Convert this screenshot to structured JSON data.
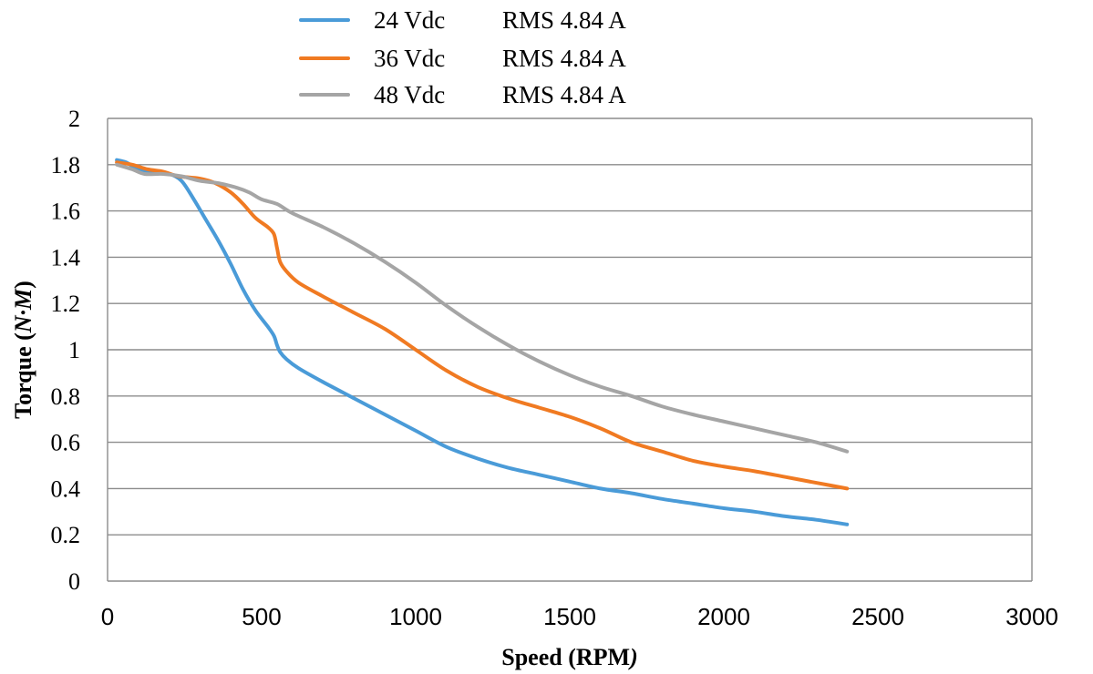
{
  "chart_data": {
    "type": "line",
    "title": "",
    "xlabel_prefix": "Speed (RPM",
    "xlabel_suffix": ")",
    "ylabel_prefix": "Torque (",
    "ylabel_italic": "N·M",
    "ylabel_suffix": ")",
    "xlim": [
      0,
      3000
    ],
    "ylim": [
      0,
      2
    ],
    "x_ticks": [
      "0",
      "500",
      "1000",
      "1500",
      "2000",
      "2500",
      "3000"
    ],
    "x_tick_values": [
      0,
      500,
      1000,
      1500,
      2000,
      2500,
      3000
    ],
    "y_ticks": [
      "0",
      "0.2",
      "0.4",
      "0.6",
      "0.8",
      "1",
      "1.2",
      "1.4",
      "1.6",
      "1.8",
      "2"
    ],
    "y_tick_values": [
      0,
      0.2,
      0.4,
      0.6,
      0.8,
      1.0,
      1.2,
      1.4,
      1.6,
      1.8,
      2.0
    ],
    "grid": true,
    "legend_position": "top",
    "series": [
      {
        "name": "24 Vdc",
        "legend_voltage": "24 Vdc",
        "legend_current": "RMS 4.84 A",
        "color": "#4a9bd8",
        "x": [
          30,
          60,
          100,
          150,
          200,
          240,
          280,
          320,
          360,
          400,
          440,
          480,
          520,
          540,
          550,
          560,
          580,
          620,
          700,
          800,
          900,
          1000,
          1100,
          1200,
          1300,
          1400,
          1500,
          1600,
          1700,
          1800,
          1900,
          2000,
          2100,
          2200,
          2300,
          2400
        ],
        "y": [
          1.82,
          1.81,
          1.78,
          1.77,
          1.76,
          1.73,
          1.65,
          1.56,
          1.47,
          1.37,
          1.26,
          1.17,
          1.1,
          1.06,
          1.02,
          0.99,
          0.96,
          0.92,
          0.86,
          0.79,
          0.72,
          0.65,
          0.58,
          0.53,
          0.49,
          0.46,
          0.43,
          0.4,
          0.38,
          0.355,
          0.335,
          0.315,
          0.3,
          0.28,
          0.265,
          0.245
        ]
      },
      {
        "name": "36 Vdc",
        "legend_voltage": "36 Vdc",
        "legend_current": "RMS 4.84 A",
        "color": "#f07a22",
        "x": [
          30,
          80,
          130,
          180,
          230,
          300,
          350,
          400,
          440,
          480,
          520,
          540,
          550,
          560,
          580,
          620,
          700,
          800,
          900,
          1000,
          1100,
          1200,
          1300,
          1400,
          1500,
          1600,
          1700,
          1800,
          1900,
          2000,
          2100,
          2200,
          2300,
          2400
        ],
        "y": [
          1.81,
          1.8,
          1.78,
          1.77,
          1.75,
          1.74,
          1.72,
          1.68,
          1.63,
          1.57,
          1.53,
          1.5,
          1.44,
          1.38,
          1.34,
          1.29,
          1.23,
          1.16,
          1.09,
          1.0,
          0.91,
          0.84,
          0.79,
          0.75,
          0.71,
          0.66,
          0.6,
          0.56,
          0.52,
          0.495,
          0.475,
          0.45,
          0.425,
          0.4
        ]
      },
      {
        "name": "48 Vdc",
        "legend_voltage": "48 Vdc",
        "legend_current": "RMS 4.84 A",
        "color": "#a5a5a5",
        "x": [
          30,
          80,
          120,
          180,
          240,
          300,
          360,
          420,
          460,
          500,
          550,
          600,
          700,
          800,
          900,
          1000,
          1100,
          1200,
          1300,
          1400,
          1500,
          1600,
          1700,
          1800,
          1900,
          2000,
          2100,
          2200,
          2300,
          2400
        ],
        "y": [
          1.8,
          1.78,
          1.76,
          1.76,
          1.75,
          1.73,
          1.72,
          1.7,
          1.68,
          1.65,
          1.63,
          1.59,
          1.53,
          1.46,
          1.38,
          1.29,
          1.19,
          1.1,
          1.02,
          0.95,
          0.89,
          0.84,
          0.8,
          0.755,
          0.72,
          0.69,
          0.66,
          0.63,
          0.6,
          0.56
        ]
      }
    ]
  }
}
